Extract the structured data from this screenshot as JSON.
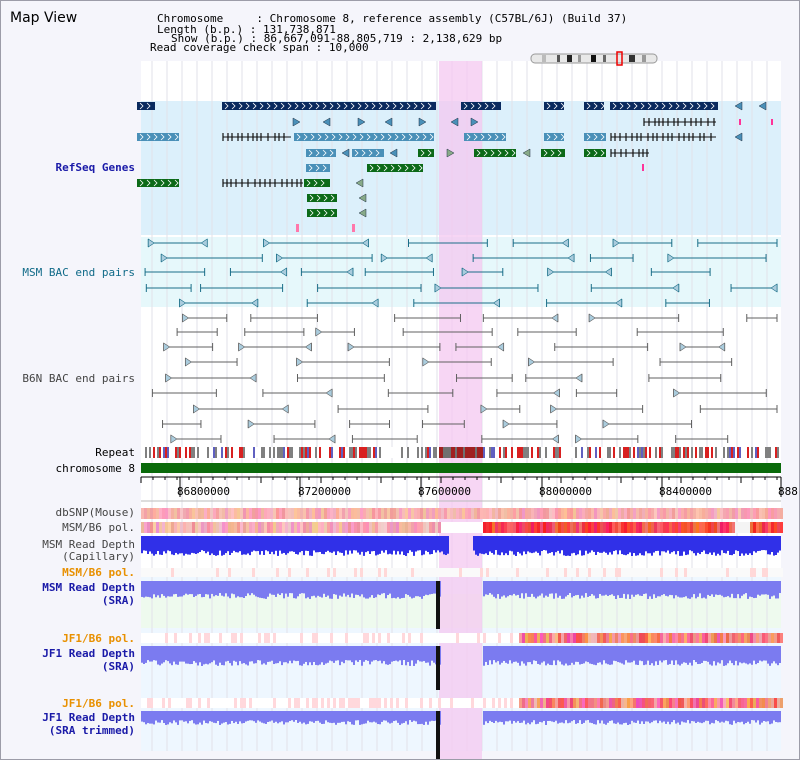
{
  "header": {
    "title": "Map View",
    "chromosome_key": "Chromosome",
    "chromosome_value": "Chromosome 8, reference assembly (C57BL/6J) (Build 37)",
    "length_key": "Length (b.p.)",
    "length_value": "131,738,871",
    "show_key": "Show (b.p.)",
    "show_value": "86,667,091-88,805,719 : 2,138,629 bp",
    "coverage_key": "Read coverage check span",
    "coverage_value": "10,000"
  },
  "tracks": {
    "refseq": "RefSeq Genes",
    "msm_bac": "MSM BAC end pairs",
    "b6n_bac": "B6N BAC end pairs",
    "repeat": "Repeat",
    "chromosome": "chromosome 8",
    "dbsnp": "dbSNP(Mouse)",
    "msm_b6_pol_1": "MSM/B6 pol.",
    "msm_depth_cap_1": "MSM Read Depth",
    "msm_depth_cap_2": "(Capillary)",
    "msm_b6_pol_2": "MSM/B6 pol.",
    "msm_depth_sra_1": "MSM Read Depth",
    "msm_depth_sra_2": "(SRA)",
    "jf1_b6_pol_1": "JF1/B6 pol.",
    "jf1_depth_sra_1": "JF1 Read Depth",
    "jf1_depth_sra_2": "(SRA)",
    "jf1_b6_pol_2": "JF1/B6 pol.",
    "jf1_depth_trim_1": "JF1 Read Depth",
    "jf1_depth_trim_2": "(SRA trimmed)"
  },
  "axis": {
    "ticks": [
      "86800000",
      "87200000",
      "87600000",
      "88000000",
      "88400000",
      "888"
    ]
  },
  "colors": {
    "refseq_bg": "#dcf0fb",
    "bac_bg": "#e6f8fb",
    "highlight": "#f4c8f0",
    "gene_navy": "#0a2a5e",
    "gene_steel": "#4a90b8",
    "gene_green": "#0c6a18",
    "bac_teal": "#1a6e88",
    "bac_gray": "#606060",
    "chromosome_bar": "#0a6a0a",
    "depth_blue": "#3030e8",
    "depth_light": "#7b7bf0"
  }
}
